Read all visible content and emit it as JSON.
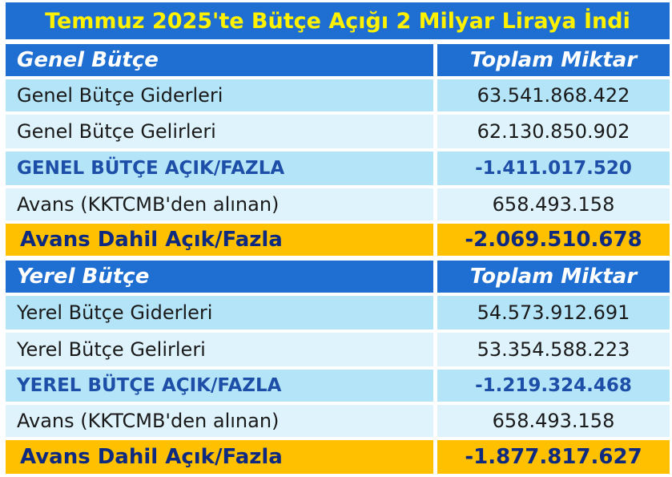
{
  "title": "Temmuz 2025'te Bütçe Açığı 2 Milyar Liraya İndi",
  "general": {
    "header": {
      "label": "Genel Bütçe",
      "amount_label": "Toplam Miktar"
    },
    "rows": [
      {
        "label": "Genel Bütçe Giderleri",
        "value": "63.541.868.422"
      },
      {
        "label": "Genel Bütçe Gelirleri",
        "value": "62.130.850.902"
      },
      {
        "label": "GENEL BÜTÇE AÇIK/FAZLA",
        "value": "-1.411.017.520"
      },
      {
        "label": "Avans (KKTCMB'den alınan)",
        "value": "658.493.158"
      },
      {
        "label": "Avans Dahil Açık/Fazla",
        "value": "-2.069.510.678"
      }
    ]
  },
  "local": {
    "header": {
      "label": "Yerel Bütçe",
      "amount_label": "Toplam Miktar"
    },
    "rows": [
      {
        "label": "Yerel Bütçe Giderleri",
        "value": "54.573.912.691"
      },
      {
        "label": "Yerel Bütçe Gelirleri",
        "value": "53.354.588.223"
      },
      {
        "label": "YEREL BÜTÇE AÇIK/FAZLA",
        "value": "-1.219.324.468"
      },
      {
        "label": "Avans (KKTCMB'den alınan)",
        "value": "658.493.158"
      },
      {
        "label": "Avans Dahil Açık/Fazla",
        "value": "-1.877.817.627"
      }
    ]
  },
  "colors": {
    "header_blue": "#1f6fd2",
    "title_yellow": "#fff200",
    "row_light_blue": "#b4e4f8",
    "row_pale_blue": "#def3fc",
    "highlight_gold": "#ffc000",
    "emphasis_blue": "#1d4fa8"
  }
}
